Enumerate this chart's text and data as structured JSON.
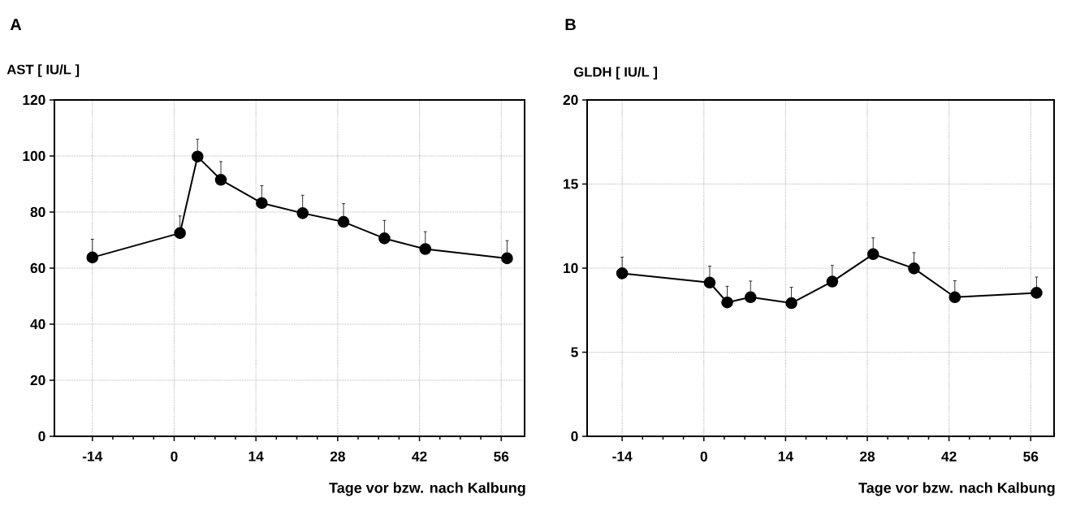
{
  "chart_data": [
    {
      "type": "line",
      "title": "A",
      "ylabel": "AST  [ IU/L ]",
      "xlabel": "Tage vor bzw. nach Kalbung",
      "x": [
        -14,
        1,
        4,
        8,
        15,
        22,
        29,
        36,
        43,
        57
      ],
      "series": [
        {
          "color": "#000000",
          "values": [
            63.8,
            72.5,
            99.8,
            91.5,
            83.2,
            79.6,
            76.5,
            70.6,
            66.8,
            63.5
          ],
          "errors": [
            [
              63.8,
              70.3
            ],
            [
              72.5,
              78.6
            ],
            [
              99.8,
              106
            ],
            [
              91.5,
              98
            ],
            [
              83.2,
              89.4
            ],
            [
              79.6,
              86
            ],
            [
              76.5,
              83
            ],
            [
              70.6,
              77
            ],
            [
              66.8,
              73
            ],
            [
              63.5,
              69.8
            ]
          ]
        }
      ],
      "xlim": [
        -20.5,
        60
      ],
      "xticks": [
        -14,
        0,
        14,
        28,
        42,
        56
      ],
      "ylim": [
        0,
        120
      ],
      "yticks": [
        0,
        20,
        40,
        60,
        80,
        100,
        120
      ],
      "grid": true,
      "marker": "circle",
      "line_style": "solid"
    },
    {
      "type": "line",
      "title": "B",
      "ylabel": "GLDH  [ IU/L ]",
      "xlabel": "Tage vor bzw. nach Kalbung",
      "x": [
        -14,
        1,
        4,
        8,
        15,
        22,
        29,
        36,
        43,
        57
      ],
      "series": [
        {
          "color": "#000000",
          "values": [
            9.69,
            9.14,
            7.96,
            8.27,
            7.92,
            9.2,
            10.83,
            9.98,
            8.27,
            8.53
          ],
          "errors": [
            [
              9.69,
              10.65
            ],
            [
              9.14,
              10.12
            ],
            [
              7.96,
              8.92
            ],
            [
              8.27,
              9.23
            ],
            [
              7.92,
              8.86
            ],
            [
              9.2,
              10.16
            ],
            [
              10.83,
              11.8
            ],
            [
              9.98,
              10.92
            ],
            [
              8.27,
              9.25
            ],
            [
              8.53,
              9.47
            ]
          ]
        }
      ],
      "xlim": [
        -20,
        60
      ],
      "xticks": [
        -14,
        0,
        14,
        28,
        42,
        56
      ],
      "ylim": [
        0,
        20
      ],
      "yticks": [
        0,
        5,
        10,
        15,
        20
      ],
      "grid": true,
      "marker": "circle",
      "line_style": "solid"
    }
  ]
}
